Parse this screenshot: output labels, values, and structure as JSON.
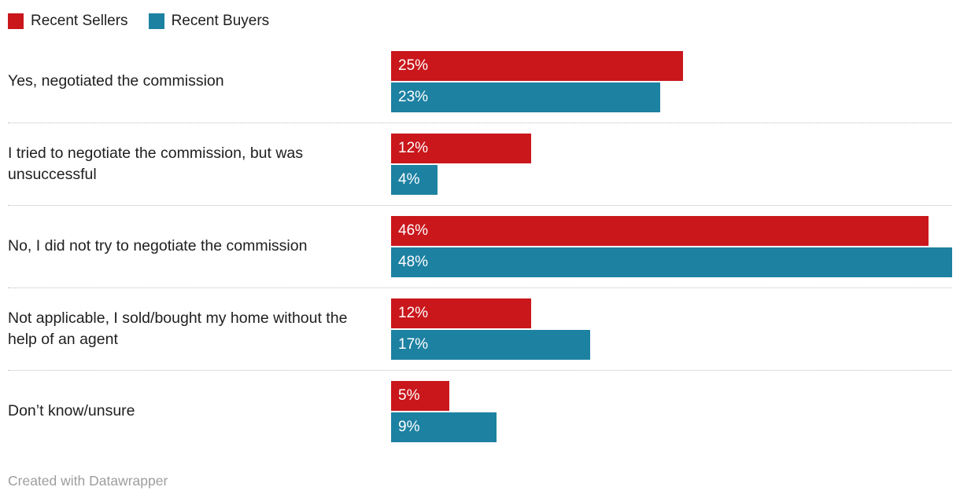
{
  "chart_data": {
    "type": "bar",
    "orientation": "horizontal",
    "grouped": true,
    "categories": [
      "Yes, negotiated the commission",
      "I tried to negotiate the commission, but was unsuccessful",
      "No, I did not try to negotiate the commission",
      "Not applicable, I sold/bought my home without the help of an agent",
      "Don’t know/unsure"
    ],
    "series": [
      {
        "name": "Recent Sellers",
        "slug": "sellers",
        "color": "#c9171c",
        "values": [
          25,
          12,
          46,
          12,
          5
        ]
      },
      {
        "name": "Recent Buyers",
        "slug": "buyers",
        "color": "#1d81a2",
        "values": [
          23,
          4,
          48,
          17,
          9
        ]
      }
    ],
    "value_suffix": "%",
    "xmax": 48,
    "legend_position": "top-left",
    "grid": false,
    "value_labels": "inside-left"
  },
  "footer": {
    "credit": "Created with Datawrapper"
  }
}
